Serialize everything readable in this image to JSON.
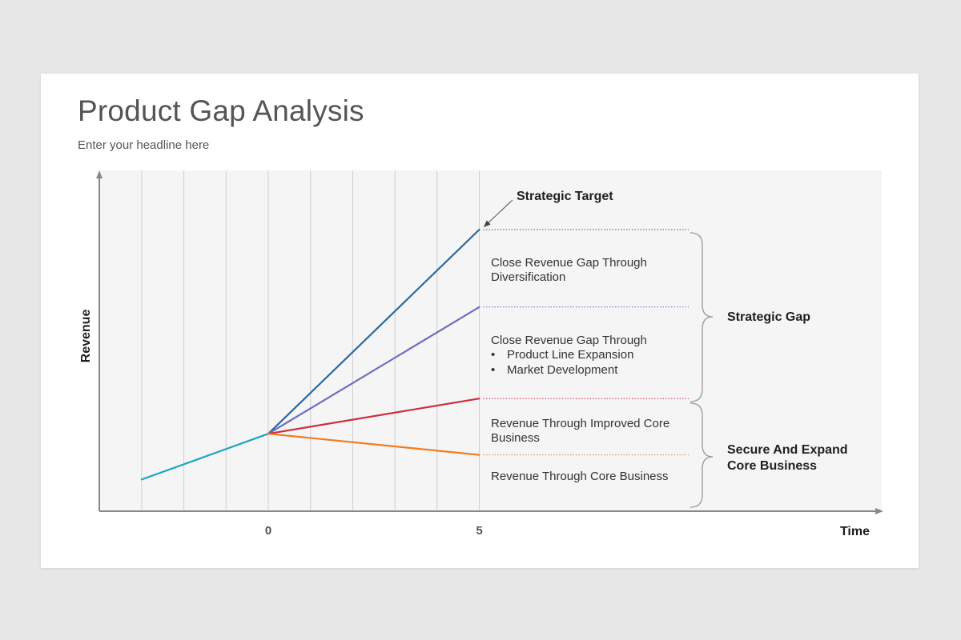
{
  "slide": {
    "title": "Product Gap Analysis",
    "subtitle": "Enter your headline here"
  },
  "chart_data": {
    "type": "line",
    "xlabel": "Time",
    "ylabel": "Revenue",
    "x_tick_labels": [
      {
        "x": 0,
        "label": "0"
      },
      {
        "x": 5,
        "label": "5"
      }
    ],
    "xlim": [
      -4,
      5
    ],
    "grid": true,
    "series": [
      {
        "key": "history",
        "color": "#1ba3c6",
        "points": [
          [
            -3,
            0.9
          ],
          [
            0,
            2.2
          ]
        ]
      },
      {
        "key": "diversification",
        "color": "#2868a0",
        "points": [
          [
            0,
            2.2
          ],
          [
            5,
            8.0
          ]
        ]
      },
      {
        "key": "expansion",
        "color": "#6b6fc0",
        "points": [
          [
            0,
            2.2
          ],
          [
            5,
            5.8
          ]
        ]
      },
      {
        "key": "improved_core",
        "color": "#cc2f3e",
        "points": [
          [
            0,
            2.2
          ],
          [
            5,
            3.2
          ]
        ]
      },
      {
        "key": "core",
        "color": "#f07c22",
        "points": [
          [
            0,
            2.2
          ],
          [
            5,
            1.6
          ]
        ]
      }
    ],
    "annotations": {
      "strategic_target": "Strategic Target",
      "diversification_text": [
        "Close Revenue Gap Through",
        "Diversification"
      ],
      "expansion_text": [
        "Close Revenue Gap Through"
      ],
      "expansion_bullets": [
        "Product Line Expansion",
        "Market Development"
      ],
      "improved_core_text": [
        "Revenue Through Improved Core",
        "Business"
      ],
      "core_text": [
        "Revenue Through Core Business"
      ],
      "strategic_gap": "Strategic Gap",
      "secure_expand": [
        "Secure And Expand",
        "Core Business"
      ]
    }
  }
}
